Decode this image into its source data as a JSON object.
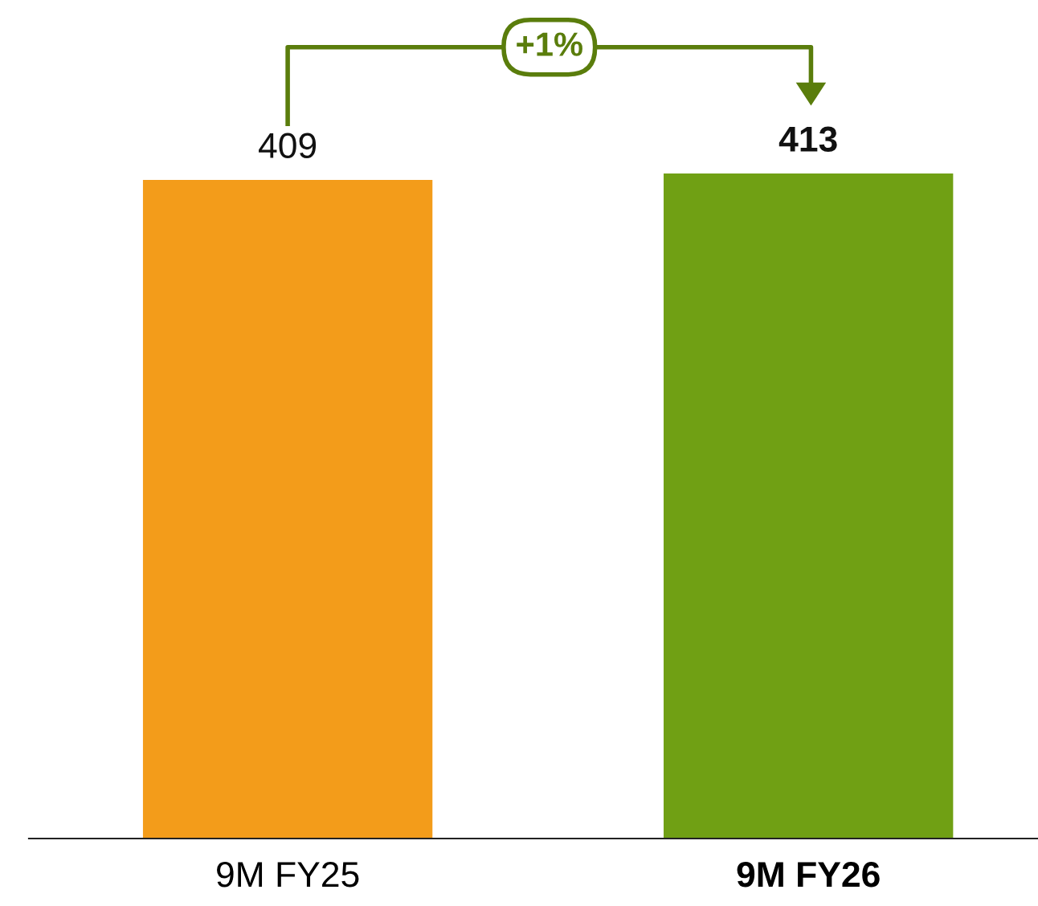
{
  "chart_data": {
    "type": "bar",
    "categories": [
      "9M FY25",
      "9M FY26"
    ],
    "values": [
      409,
      413
    ],
    "colors": [
      "#f39c1a",
      "#70a014"
    ],
    "data_labels": true,
    "grid": false,
    "legend": false,
    "tick_labels": "x",
    "annotations": [
      "+1%"
    ]
  }
}
